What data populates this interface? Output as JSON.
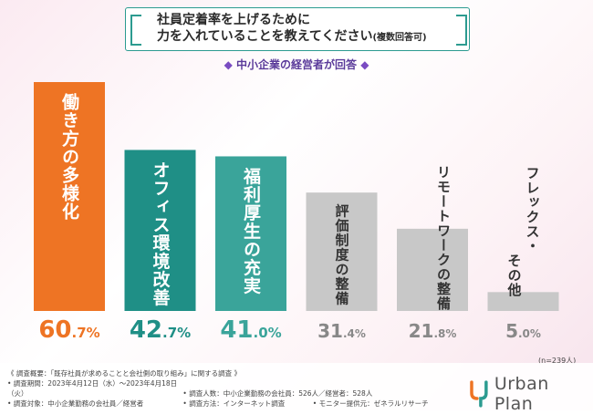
{
  "title": {
    "line1": "社員定着率を上げるために",
    "line2_main": "力を入れていることを教えてください",
    "line2_small": "(複数回答可)"
  },
  "subtitle": {
    "left_mark": "◆",
    "text": "中小企業の経営者が回答",
    "right_mark": "◆"
  },
  "sample_note": "(n=239人)",
  "chart_data": {
    "type": "bar",
    "categories": [
      "働き方の多様化",
      "オフィス環境改善",
      "福利厚生の充実",
      "評価制度の整備",
      "リモートワークの整備",
      "フレックス・その他"
    ],
    "values": [
      60.7,
      42.7,
      41.0,
      31.4,
      21.8,
      5.0
    ],
    "labels": [
      {
        "int": "60",
        "dec": ".7%"
      },
      {
        "int": "42",
        "dec": ".7%"
      },
      {
        "int": "41",
        "dec": ".0%"
      },
      {
        "int": "31",
        "dec": ".4%"
      },
      {
        "int": "21",
        "dec": ".8%"
      },
      {
        "int": "5",
        "dec": ".0%"
      }
    ],
    "bar_text_columns": [
      [
        "働き方の多様化"
      ],
      [
        "オフィス環境改善"
      ],
      [
        "福利厚生の充実"
      ],
      [
        "評価制度の整備"
      ],
      [
        "リモートワークの整備"
      ],
      [
        "フレックス・",
        "その他"
      ]
    ],
    "colors": {
      "bar": [
        "#ee7424",
        "#1f8f86",
        "#3aa49a",
        "#c8c8c8",
        "#c8c8c8",
        "#c8c8c8"
      ],
      "text_in_bar": [
        "#ffffff",
        "#ffffff",
        "#ffffff",
        "#333333",
        "#333333",
        "#333333"
      ],
      "value_label": [
        "#ee7424",
        "#1f8f86",
        "#3aa49a",
        "#888888",
        "#888888",
        "#888888"
      ]
    },
    "ylim": [
      0,
      65
    ],
    "grid": false
  },
  "footer": {
    "overview": "《 調査概要：「既存社員が求めることと会社側の取り組み」に関する調査 》",
    "period": "• 調査期間：2023年4月12日（水）〜2023年4月18日（火）",
    "count": "• 調査人数：中小企業勤務の会社員：526人／経営者：528人",
    "target": "• 調査対象：中小企業勤務の会社員／経営者",
    "method": "• 調査方法：インターネット調査",
    "provider": "• モニター提供元：ゼネラルリサーチ"
  },
  "logo": {
    "text": "Urban Plan",
    "color_orange": "#ee7424",
    "color_teal": "#2c9b90"
  }
}
